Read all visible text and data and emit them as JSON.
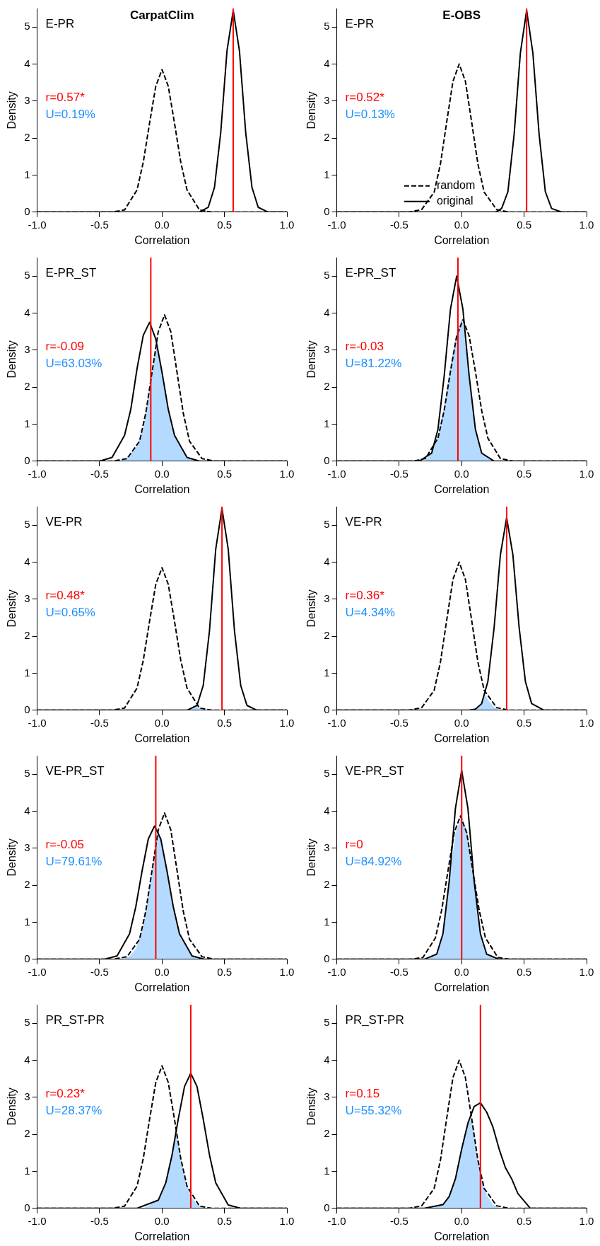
{
  "chart_data": [
    {
      "type": "line",
      "title": "CarpatClim",
      "subtitle": "E-PR",
      "xlabel": "Correlation",
      "ylabel": "Density",
      "xlim": [
        -1,
        1
      ],
      "ylim": [
        0,
        5.5
      ],
      "grid": false,
      "xticks": [
        {
          "value": -1,
          "label": "-1.0"
        },
        {
          "value": -0.5,
          "label": "-0.5"
        },
        {
          "value": 0,
          "label": "0.0"
        },
        {
          "value": 0.5,
          "label": "0.5"
        },
        {
          "value": 1,
          "label": "1.0"
        }
      ],
      "yticks": [
        0,
        1,
        2,
        3,
        4,
        5
      ],
      "series": [
        {
          "color": "#000000",
          "line_style": "dashed",
          "x": [
            -1,
            -0.4,
            -0.3,
            -0.2,
            -0.15,
            -0.1,
            -0.05,
            0,
            0.05,
            0.1,
            0.15,
            0.2,
            0.3,
            0.4,
            1
          ],
          "values": [
            0,
            0,
            0.06,
            0.6,
            1.35,
            2.4,
            3.4,
            3.85,
            3.4,
            2.4,
            1.35,
            0.6,
            0.06,
            0,
            0
          ]
        },
        {
          "color": "#000000",
          "line_style": "solid",
          "x": [
            -1,
            0.3,
            0.37,
            0.42,
            0.47,
            0.52,
            0.57,
            0.62,
            0.67,
            0.72,
            0.77,
            0.85,
            1
          ],
          "values": [
            0,
            0,
            0.13,
            0.67,
            2.15,
            4.35,
            5.45,
            4.35,
            2.15,
            0.67,
            0.13,
            0,
            0
          ]
        },
        {
          "type": "area",
          "name": "U=0.19%",
          "color": "#1e90ff",
          "x": [
            -1,
            0.25,
            0.3,
            0.35,
            1
          ],
          "values": [
            0,
            0,
            0.03,
            0,
            0
          ]
        }
      ],
      "ref_lines": [
        {
          "axis": "x",
          "value": 0.57,
          "label": "r=0.57*",
          "color": "#ff0000"
        }
      ]
    },
    {
      "type": "line",
      "title": "E-OBS",
      "subtitle": "E-PR",
      "xlabel": "Correlation",
      "ylabel": "Density",
      "xlim": [
        -1,
        1
      ],
      "ylim": [
        0,
        5.5
      ],
      "grid": false,
      "legend": "bottom left",
      "xticks": [
        {
          "value": -1,
          "label": "-1.0"
        },
        {
          "value": -0.5,
          "label": "-0.5"
        },
        {
          "value": 0,
          "label": "0.0"
        },
        {
          "value": 0.5,
          "label": "0.5"
        },
        {
          "value": 1,
          "label": "1.0"
        }
      ],
      "yticks": [
        0,
        1,
        2,
        3,
        4,
        5
      ],
      "series": [
        {
          "name": "random",
          "color": "#000000",
          "line_style": "dashed",
          "x": [
            -1,
            -0.42,
            -0.32,
            -0.22,
            -0.17,
            -0.12,
            -0.07,
            -0.02,
            0.03,
            0.08,
            0.13,
            0.18,
            0.28,
            0.38,
            1
          ],
          "values": [
            0,
            0,
            0.07,
            0.54,
            1.3,
            2.43,
            3.53,
            4.0,
            3.53,
            2.43,
            1.3,
            0.54,
            0.07,
            0,
            0
          ]
        },
        {
          "name": "original",
          "color": "#000000",
          "line_style": "solid",
          "x": [
            -1,
            0.27,
            0.32,
            0.37,
            0.42,
            0.47,
            0.52,
            0.57,
            0.62,
            0.67,
            0.72,
            0.8,
            1
          ],
          "values": [
            0,
            0,
            0.1,
            0.55,
            2.1,
            4.3,
            5.45,
            4.3,
            2.1,
            0.55,
            0.1,
            0,
            0
          ]
        },
        {
          "type": "area",
          "name": "U=0.13%",
          "color": "#1e90ff",
          "x": [
            -1,
            0.25,
            0.3,
            0.35,
            1
          ],
          "values": [
            0,
            0,
            0.02,
            0,
            0
          ]
        }
      ],
      "ref_lines": [
        {
          "axis": "x",
          "value": 0.52,
          "label": "r=0.52*",
          "color": "#ff0000"
        }
      ]
    },
    {
      "type": "line",
      "subtitle": "E-PR_ST",
      "xlabel": "Correlation",
      "ylabel": "Density",
      "xlim": [
        -1,
        1
      ],
      "ylim": [
        0,
        5.5
      ],
      "grid": false,
      "xticks": [
        {
          "value": -1,
          "label": "-1.0"
        },
        {
          "value": -0.5,
          "label": "-0.5"
        },
        {
          "value": 0,
          "label": "0.0"
        },
        {
          "value": 0.5,
          "label": "0.5"
        },
        {
          "value": 1,
          "label": "1.0"
        }
      ],
      "yticks": [
        0,
        1,
        2,
        3,
        4,
        5
      ],
      "series": [
        {
          "color": "#000000",
          "line_style": "dashed",
          "x": [
            -1,
            -0.4,
            -0.28,
            -0.18,
            -0.13,
            -0.08,
            -0.03,
            0.02,
            0.07,
            0.12,
            0.17,
            0.22,
            0.32,
            0.42,
            1
          ],
          "values": [
            0,
            0,
            0.07,
            0.54,
            1.3,
            2.4,
            3.5,
            3.95,
            3.5,
            2.4,
            1.3,
            0.54,
            0.07,
            0,
            0
          ]
        },
        {
          "color": "#000000",
          "line_style": "solid",
          "x": [
            -1,
            -0.5,
            -0.4,
            -0.3,
            -0.25,
            -0.2,
            -0.15,
            -0.1,
            -0.05,
            0,
            0.05,
            0.1,
            0.2,
            0.3,
            1
          ],
          "values": [
            0,
            0,
            0.1,
            0.7,
            1.4,
            2.5,
            3.4,
            3.75,
            3.3,
            2.4,
            1.4,
            0.7,
            0.1,
            0,
            0
          ]
        },
        {
          "type": "area",
          "name": "U=63.03%",
          "color": "#1e90ff",
          "x": [
            -1,
            -0.35,
            -0.3,
            -0.2,
            -0.15,
            -0.1,
            -0.05,
            -0.03,
            0,
            0.05,
            0.1,
            0.2,
            0.3,
            1
          ],
          "values": [
            0,
            0,
            0.04,
            0.4,
            0.9,
            2.0,
            3.1,
            2.95,
            2.4,
            1.4,
            0.7,
            0.1,
            0,
            0
          ]
        }
      ],
      "ref_lines": [
        {
          "axis": "x",
          "value": -0.09,
          "label": "r=-0.09",
          "color": "#ff0000"
        }
      ]
    },
    {
      "type": "line",
      "subtitle": "E-PR_ST",
      "xlabel": "Correlation",
      "ylabel": "Density",
      "xlim": [
        -1,
        1
      ],
      "ylim": [
        0,
        5.5
      ],
      "grid": false,
      "xticks": [
        {
          "value": -1,
          "label": "-1.0"
        },
        {
          "value": -0.5,
          "label": "-0.5"
        },
        {
          "value": 0,
          "label": "0.0"
        },
        {
          "value": 0.5,
          "label": "0.5"
        },
        {
          "value": 1,
          "label": "1.0"
        }
      ],
      "yticks": [
        0,
        1,
        2,
        3,
        4,
        5
      ],
      "series": [
        {
          "color": "#000000",
          "line_style": "dashed",
          "x": [
            -1,
            -0.39,
            -0.29,
            -0.19,
            -0.14,
            -0.09,
            -0.04,
            0.01,
            0.06,
            0.11,
            0.16,
            0.21,
            0.31,
            0.41,
            1
          ],
          "values": [
            0,
            0,
            0.07,
            0.62,
            1.37,
            2.42,
            3.38,
            3.82,
            3.38,
            2.42,
            1.37,
            0.62,
            0.07,
            0,
            0
          ]
        },
        {
          "color": "#000000",
          "line_style": "solid",
          "x": [
            -1,
            -0.34,
            -0.24,
            -0.19,
            -0.14,
            -0.09,
            -0.04,
            0.01,
            0.06,
            0.11,
            0.16,
            0.26,
            1
          ],
          "values": [
            0,
            0,
            0.22,
            0.86,
            2.3,
            4.1,
            5.0,
            4.1,
            2.3,
            0.86,
            0.22,
            0,
            0
          ]
        },
        {
          "type": "area",
          "name": "U=81.22%",
          "color": "#1e90ff",
          "x": [
            -1,
            -0.3,
            -0.24,
            -0.19,
            -0.14,
            -0.09,
            -0.04,
            0,
            0.03,
            0.06,
            0.11,
            0.16,
            0.26,
            1
          ],
          "values": [
            0,
            0,
            0.22,
            0.7,
            1.5,
            2.6,
            3.5,
            3.85,
            3.3,
            2.3,
            0.86,
            0.22,
            0,
            0
          ]
        }
      ],
      "ref_lines": [
        {
          "axis": "x",
          "value": -0.03,
          "label": "r=-0.03",
          "color": "#ff0000"
        }
      ]
    },
    {
      "type": "line",
      "subtitle": "VE-PR",
      "xlabel": "Correlation",
      "ylabel": "Density",
      "xlim": [
        -1,
        1
      ],
      "ylim": [
        0,
        5.5
      ],
      "grid": false,
      "xticks": [
        {
          "value": -1,
          "label": "-1.0"
        },
        {
          "value": -0.5,
          "label": "-0.5"
        },
        {
          "value": 0,
          "label": "0.0"
        },
        {
          "value": 0.5,
          "label": "0.5"
        },
        {
          "value": 1,
          "label": "1.0"
        }
      ],
      "yticks": [
        0,
        1,
        2,
        3,
        4,
        5
      ],
      "series": [
        {
          "color": "#000000",
          "line_style": "dashed",
          "x": [
            -1,
            -0.4,
            -0.3,
            -0.2,
            -0.15,
            -0.1,
            -0.05,
            0,
            0.05,
            0.1,
            0.15,
            0.2,
            0.3,
            0.4,
            1
          ],
          "values": [
            0,
            0,
            0.06,
            0.6,
            1.35,
            2.4,
            3.4,
            3.85,
            3.4,
            2.4,
            1.35,
            0.6,
            0.06,
            0,
            0
          ]
        },
        {
          "color": "#000000",
          "line_style": "solid",
          "x": [
            -1,
            0.2,
            0.28,
            0.33,
            0.38,
            0.43,
            0.48,
            0.53,
            0.58,
            0.63,
            0.68,
            0.76,
            1
          ],
          "values": [
            0,
            0,
            0.13,
            0.67,
            2.15,
            4.35,
            5.45,
            4.35,
            2.15,
            0.67,
            0.13,
            0,
            0
          ]
        },
        {
          "type": "area",
          "name": "U=0.65%",
          "color": "#1e90ff",
          "x": [
            -1,
            0.18,
            0.23,
            0.28,
            0.33,
            0.38,
            1
          ],
          "values": [
            0,
            0,
            0.03,
            0.1,
            0.03,
            0,
            0
          ]
        }
      ],
      "ref_lines": [
        {
          "axis": "x",
          "value": 0.48,
          "label": "r=0.48*",
          "color": "#ff0000"
        }
      ]
    },
    {
      "type": "line",
      "subtitle": "VE-PR",
      "xlabel": "Correlation",
      "ylabel": "Density",
      "xlim": [
        -1,
        1
      ],
      "ylim": [
        0,
        5.5
      ],
      "grid": false,
      "xticks": [
        {
          "value": -1,
          "label": "-1.0"
        },
        {
          "value": -0.5,
          "label": "-0.5"
        },
        {
          "value": 0,
          "label": "0.0"
        },
        {
          "value": 0.5,
          "label": "0.5"
        },
        {
          "value": 1,
          "label": "1.0"
        }
      ],
      "yticks": [
        0,
        1,
        2,
        3,
        4,
        5
      ],
      "series": [
        {
          "color": "#000000",
          "line_style": "dashed",
          "x": [
            -1,
            -0.42,
            -0.32,
            -0.22,
            -0.17,
            -0.12,
            -0.07,
            -0.02,
            0.03,
            0.08,
            0.13,
            0.18,
            0.28,
            0.38,
            1
          ],
          "values": [
            0,
            0,
            0.07,
            0.54,
            1.3,
            2.43,
            3.53,
            4.0,
            3.53,
            2.43,
            1.3,
            0.54,
            0.07,
            0,
            0
          ]
        },
        {
          "color": "#000000",
          "line_style": "solid",
          "x": [
            -1,
            0.06,
            0.11,
            0.16,
            0.21,
            0.26,
            0.31,
            0.36,
            0.41,
            0.46,
            0.51,
            0.56,
            0.66,
            1
          ],
          "values": [
            0,
            0,
            0.03,
            0.18,
            0.78,
            2.24,
            4.2,
            5.2,
            4.2,
            2.24,
            0.78,
            0.18,
            0,
            0
          ]
        },
        {
          "type": "area",
          "name": "U=4.34%",
          "color": "#1e90ff",
          "x": [
            -1,
            0.06,
            0.11,
            0.16,
            0.19,
            0.21,
            0.26,
            0.31,
            1
          ],
          "values": [
            0,
            0,
            0.03,
            0.18,
            0.44,
            0.28,
            0.08,
            0,
            0
          ]
        }
      ],
      "ref_lines": [
        {
          "axis": "x",
          "value": 0.36,
          "label": "r=0.36*",
          "color": "#ff0000"
        }
      ]
    },
    {
      "type": "line",
      "subtitle": "VE-PR_ST",
      "xlabel": "Correlation",
      "ylabel": "Density",
      "xlim": [
        -1,
        1
      ],
      "ylim": [
        0,
        5.5
      ],
      "grid": false,
      "xticks": [
        {
          "value": -1,
          "label": "-1.0"
        },
        {
          "value": -0.5,
          "label": "-0.5"
        },
        {
          "value": 0,
          "label": "0.0"
        },
        {
          "value": 0.5,
          "label": "0.5"
        },
        {
          "value": 1,
          "label": "1.0"
        }
      ],
      "yticks": [
        0,
        1,
        2,
        3,
        4,
        5
      ],
      "series": [
        {
          "color": "#000000",
          "line_style": "dashed",
          "x": [
            -1,
            -0.4,
            -0.28,
            -0.18,
            -0.13,
            -0.08,
            -0.03,
            0.02,
            0.07,
            0.12,
            0.17,
            0.22,
            0.32,
            0.42,
            1
          ],
          "values": [
            0,
            0,
            0.07,
            0.54,
            1.3,
            2.4,
            3.5,
            3.95,
            3.5,
            2.4,
            1.3,
            0.54,
            0.07,
            0,
            0
          ]
        },
        {
          "color": "#000000",
          "line_style": "solid",
          "x": [
            -1,
            -0.46,
            -0.36,
            -0.26,
            -0.21,
            -0.16,
            -0.11,
            -0.06,
            -0.01,
            0.04,
            0.09,
            0.14,
            0.24,
            0.34,
            1
          ],
          "values": [
            0,
            0,
            0.09,
            0.69,
            1.42,
            2.38,
            3.25,
            3.6,
            3.25,
            2.38,
            1.42,
            0.69,
            0.09,
            0,
            0
          ]
        },
        {
          "type": "area",
          "name": "U=79.61%",
          "color": "#1e90ff",
          "x": [
            -1,
            -0.32,
            -0.26,
            -0.21,
            -0.16,
            -0.11,
            -0.06,
            -0.03,
            -0.01,
            0.04,
            0.09,
            0.14,
            0.24,
            0.34,
            1
          ],
          "values": [
            0,
            0,
            0.08,
            0.28,
            0.78,
            1.69,
            2.87,
            3.47,
            3.25,
            2.38,
            1.42,
            0.69,
            0.09,
            0,
            0
          ]
        }
      ],
      "ref_lines": [
        {
          "axis": "x",
          "value": -0.05,
          "label": "r=-0.05",
          "color": "#ff0000"
        }
      ]
    },
    {
      "type": "line",
      "subtitle": "VE-PR_ST",
      "xlabel": "Correlation",
      "ylabel": "Density",
      "xlim": [
        -1,
        1
      ],
      "ylim": [
        0,
        5.5
      ],
      "grid": false,
      "xticks": [
        {
          "value": -1,
          "label": "-1.0"
        },
        {
          "value": -0.5,
          "label": "-0.5"
        },
        {
          "value": 0,
          "label": "0.0"
        },
        {
          "value": 0.5,
          "label": "0.5"
        },
        {
          "value": 1,
          "label": "1.0"
        }
      ],
      "yticks": [
        0,
        1,
        2,
        3,
        4,
        5
      ],
      "series": [
        {
          "color": "#000000",
          "line_style": "dashed",
          "x": [
            -1,
            -0.41,
            -0.31,
            -0.21,
            -0.16,
            -0.11,
            -0.06,
            -0.01,
            0.04,
            0.09,
            0.14,
            0.19,
            0.29,
            0.39,
            1
          ],
          "values": [
            0,
            0,
            0.05,
            0.58,
            1.33,
            2.38,
            3.42,
            3.87,
            3.42,
            2.38,
            1.33,
            0.58,
            0.05,
            0,
            0
          ]
        },
        {
          "color": "#000000",
          "line_style": "solid",
          "x": [
            -1,
            -0.3,
            -0.2,
            -0.15,
            -0.1,
            -0.05,
            0,
            0.05,
            0.1,
            0.15,
            0.2,
            0.3,
            1
          ],
          "values": [
            0,
            0,
            0.14,
            0.69,
            2.1,
            4.08,
            5.1,
            4.08,
            2.1,
            0.69,
            0.14,
            0,
            0
          ]
        },
        {
          "type": "area",
          "name": "U=84.92%",
          "color": "#1e90ff",
          "x": [
            -1,
            -0.3,
            -0.2,
            -0.15,
            -0.1,
            -0.05,
            0,
            0.05,
            0.1,
            0.15,
            0.2,
            0.3,
            1
          ],
          "values": [
            0,
            0,
            0.14,
            0.69,
            2.1,
            3.4,
            3.85,
            3.4,
            2.1,
            0.69,
            0.14,
            0,
            0
          ]
        }
      ],
      "ref_lines": [
        {
          "axis": "x",
          "value": 0,
          "label": "r=0",
          "color": "#ff0000"
        }
      ]
    },
    {
      "type": "line",
      "subtitle": "PR_ST-PR",
      "xlabel": "Correlation",
      "ylabel": "Density",
      "xlim": [
        -1,
        1
      ],
      "ylim": [
        0,
        5.5
      ],
      "grid": false,
      "xticks": [
        {
          "value": -1,
          "label": "-1.0"
        },
        {
          "value": -0.5,
          "label": "-0.5"
        },
        {
          "value": 0,
          "label": "0.0"
        },
        {
          "value": 0.5,
          "label": "0.5"
        },
        {
          "value": 1,
          "label": "1.0"
        }
      ],
      "yticks": [
        0,
        1,
        2,
        3,
        4,
        5
      ],
      "series": [
        {
          "color": "#000000",
          "line_style": "dashed",
          "x": [
            -1,
            -0.4,
            -0.3,
            -0.2,
            -0.15,
            -0.1,
            -0.05,
            0,
            0.05,
            0.1,
            0.15,
            0.2,
            0.3,
            0.4,
            1
          ],
          "values": [
            0,
            0,
            0.06,
            0.6,
            1.35,
            2.4,
            3.4,
            3.85,
            3.4,
            2.4,
            1.35,
            0.6,
            0.06,
            0,
            0
          ]
        },
        {
          "color": "#000000",
          "line_style": "solid",
          "x": [
            -1,
            -0.2,
            -0.03,
            0.03,
            0.08,
            0.13,
            0.18,
            0.23,
            0.28,
            0.33,
            0.38,
            0.43,
            0.53,
            0.63,
            1
          ],
          "values": [
            0,
            0,
            0.22,
            0.69,
            1.44,
            2.41,
            3.29,
            3.65,
            3.29,
            2.41,
            1.44,
            0.69,
            0.09,
            0,
            0
          ]
        },
        {
          "type": "area",
          "name": "U=28.37%",
          "color": "#1e90ff",
          "x": [
            -1,
            -0.15,
            -0.03,
            0,
            0.03,
            0.08,
            0.11,
            0.13,
            0.18,
            0.23,
            0.28,
            0.35,
            1
          ],
          "values": [
            0,
            0,
            0.22,
            0.4,
            0.69,
            1.44,
            2.05,
            1.76,
            0.86,
            0.33,
            0.1,
            0,
            0
          ]
        }
      ],
      "ref_lines": [
        {
          "axis": "x",
          "value": 0.23,
          "label": "r=0.23*",
          "color": "#ff0000"
        }
      ]
    },
    {
      "type": "line",
      "subtitle": "PR_ST-PR",
      "xlabel": "Correlation",
      "ylabel": "Density",
      "xlim": [
        -1,
        1
      ],
      "ylim": [
        0,
        5.5
      ],
      "grid": false,
      "xticks": [
        {
          "value": -1,
          "label": "-1.0"
        },
        {
          "value": -0.5,
          "label": "-0.5"
        },
        {
          "value": 0,
          "label": "0.0"
        },
        {
          "value": 0.5,
          "label": "0.5"
        },
        {
          "value": 1,
          "label": "1.0"
        }
      ],
      "yticks": [
        0,
        1,
        2,
        3,
        4,
        5
      ],
      "series": [
        {
          "color": "#000000",
          "line_style": "dashed",
          "x": [
            -1,
            -0.42,
            -0.32,
            -0.22,
            -0.17,
            -0.12,
            -0.07,
            -0.02,
            0.03,
            0.08,
            0.13,
            0.18,
            0.28,
            0.38,
            1
          ],
          "values": [
            0,
            0,
            0.07,
            0.54,
            1.3,
            2.43,
            3.53,
            4.0,
            3.53,
            2.43,
            1.3,
            0.54,
            0.07,
            0,
            0
          ]
        },
        {
          "color": "#000000",
          "line_style": "solid",
          "x": [
            -1,
            -0.3,
            -0.15,
            -0.1,
            -0.05,
            0,
            0.05,
            0.1,
            0.15,
            0.2,
            0.25,
            0.3,
            0.35,
            0.4,
            0.45,
            0.55,
            1
          ],
          "values": [
            0,
            0,
            0.1,
            0.32,
            0.8,
            1.6,
            2.3,
            2.75,
            2.85,
            2.6,
            2.2,
            1.6,
            1.1,
            0.8,
            0.4,
            0,
            0
          ]
        },
        {
          "type": "area",
          "name": "U=55.32%",
          "color": "#1e90ff",
          "x": [
            -1,
            -0.25,
            -0.15,
            -0.1,
            -0.05,
            0,
            0.05,
            0.08,
            0.1,
            0.15,
            0.2,
            0.25,
            0.3,
            0.35,
            1
          ],
          "values": [
            0,
            0,
            0.1,
            0.32,
            0.8,
            1.6,
            2.3,
            2.43,
            1.95,
            0.94,
            0.36,
            0.1,
            0.02,
            0,
            0
          ]
        }
      ],
      "ref_lines": [
        {
          "axis": "x",
          "value": 0.15,
          "label": "r=0.15",
          "color": "#ff0000"
        }
      ]
    }
  ]
}
